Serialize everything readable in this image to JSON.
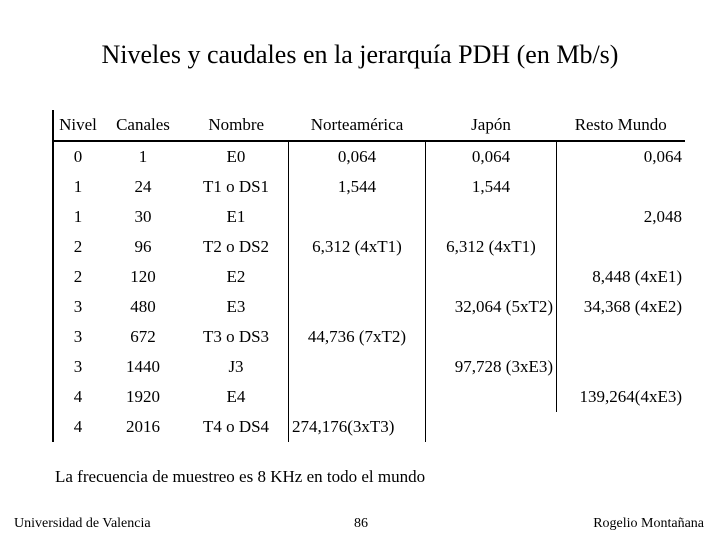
{
  "title": "Niveles y caudales en la jerarquía PDH (en Mb/s)",
  "table": {
    "headers": [
      "Nivel",
      "Canales",
      "Nombre",
      "Norteamérica",
      "Japón",
      "Resto Mundo"
    ],
    "rows": [
      {
        "nivel": "0",
        "canales": "1",
        "nombre": "E0",
        "na": "0,064",
        "jp": "0,064",
        "rm": "0,064"
      },
      {
        "nivel": "1",
        "canales": "24",
        "nombre": "T1 o DS1",
        "na": "1,544",
        "jp": "1,544",
        "rm": ""
      },
      {
        "nivel": "1",
        "canales": "30",
        "nombre": "E1",
        "na": "",
        "jp": "",
        "rm": "2,048"
      },
      {
        "nivel": "2",
        "canales": "96",
        "nombre": "T2 o DS2",
        "na": "6,312 (4xT1)",
        "jp": "6,312 (4xT1)",
        "rm": ""
      },
      {
        "nivel": "2",
        "canales": "120",
        "nombre": "E2",
        "na": "",
        "jp": "",
        "rm": "8,448 (4xE1)"
      },
      {
        "nivel": "3",
        "canales": "480",
        "nombre": "E3",
        "na": "",
        "jp": "32,064 (5xT2)",
        "rm": "34,368 (4xE2)"
      },
      {
        "nivel": "3",
        "canales": "672",
        "nombre": "T3 o DS3",
        "na": "44,736 (7xT2)",
        "jp": "",
        "rm": ""
      },
      {
        "nivel": "3",
        "canales": "1440",
        "nombre": "J3",
        "na": "",
        "jp": "97,728 (3xE3)",
        "rm": ""
      },
      {
        "nivel": "4",
        "canales": "1920",
        "nombre": "E4",
        "na": "",
        "jp": "",
        "rm": "139,264(4xE3)"
      },
      {
        "nivel": "4",
        "canales": "2016",
        "nombre": "T4 o DS4",
        "na": "274,176(3xT3)",
        "jp": "",
        "rm": ""
      }
    ]
  },
  "footnote": "La frecuencia de muestreo es 8 KHz en todo el mundo",
  "footer": {
    "left": "Universidad de Valencia",
    "center": "86",
    "right": "Rogelio Montañana"
  }
}
